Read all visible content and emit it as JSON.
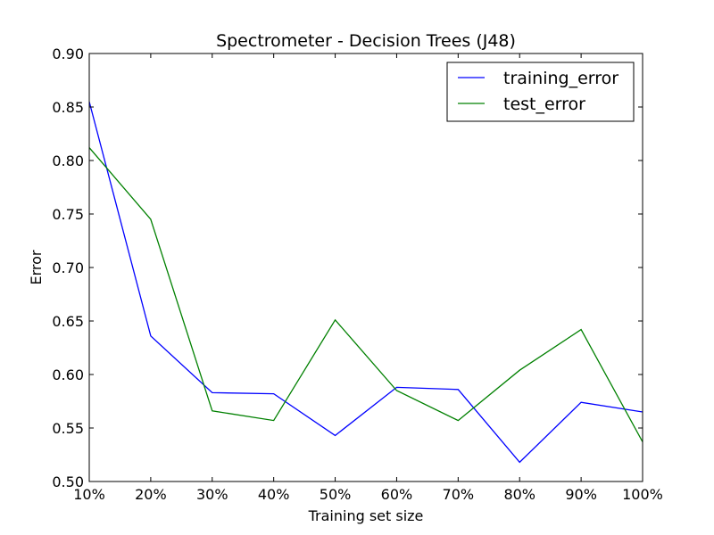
{
  "chart_data": {
    "type": "line",
    "title": "Spectrometer - Decision Trees (J48)",
    "xlabel": "Training set size",
    "ylabel": "Error",
    "categories": [
      "10%",
      "20%",
      "30%",
      "40%",
      "50%",
      "60%",
      "70%",
      "80%",
      "90%",
      "100%"
    ],
    "x": [
      10,
      20,
      30,
      40,
      50,
      60,
      70,
      80,
      90,
      100
    ],
    "ylim": [
      0.5,
      0.9
    ],
    "yticks": [
      "0.50",
      "0.55",
      "0.60",
      "0.65",
      "0.70",
      "0.75",
      "0.80",
      "0.85",
      "0.90"
    ],
    "grid": false,
    "legend_position": "top-right",
    "series": [
      {
        "name": "training_error",
        "color": "#0000ff",
        "values": [
          0.855,
          0.636,
          0.583,
          0.582,
          0.543,
          0.588,
          0.586,
          0.518,
          0.574,
          0.565
        ]
      },
      {
        "name": "test_error",
        "color": "#008000",
        "values": [
          0.812,
          0.745,
          0.566,
          0.557,
          0.651,
          0.585,
          0.557,
          0.604,
          0.642,
          0.537
        ]
      }
    ]
  }
}
